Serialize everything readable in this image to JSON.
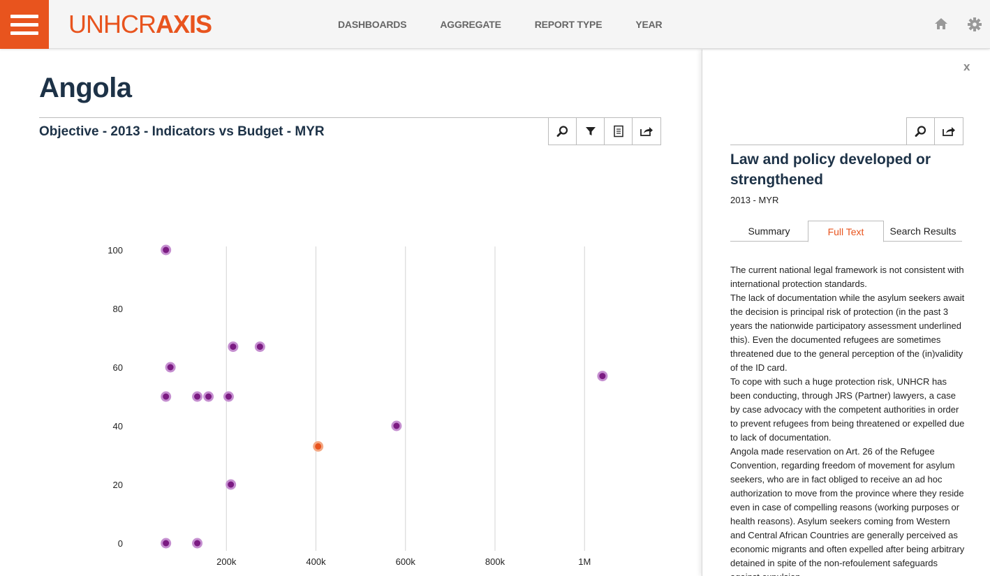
{
  "header": {
    "logo_thin": "UNHCR",
    "logo_bold": "AXIS",
    "nav": [
      "DASHBOARDS",
      "AGGREGATE",
      "REPORT TYPE",
      "YEAR"
    ],
    "icons": [
      "menu-icon",
      "home-icon",
      "gear-icon"
    ]
  },
  "main": {
    "page_title": "Angola",
    "panel_title": "Objective - 2013 - Indicators vs Budget - MYR",
    "toolbar_icons": [
      "search-icon",
      "filter-icon",
      "document-icon",
      "share-icon"
    ]
  },
  "chart_data": {
    "type": "scatter",
    "x_ticks": [
      {
        "value": 200000,
        "label": "200k"
      },
      {
        "value": 400000,
        "label": "400k"
      },
      {
        "value": 600000,
        "label": "600k"
      },
      {
        "value": 800000,
        "label": "800k"
      },
      {
        "value": 1000000,
        "label": "1M"
      }
    ],
    "y_ticks": [
      {
        "value": 100,
        "label": "100"
      },
      {
        "value": 80,
        "label": "80"
      },
      {
        "value": 60,
        "label": "60"
      },
      {
        "value": 40,
        "label": "40"
      },
      {
        "value": 20,
        "label": "20"
      },
      {
        "value": 0,
        "label": "0"
      }
    ],
    "grid": "vertical",
    "colors": {
      "point": "#7b1b82",
      "halo": "#c58fd0",
      "selected": "#e8541e",
      "selected_halo": "#f3a884"
    },
    "points": [
      {
        "x": 65000,
        "y": 100
      },
      {
        "x": 215000,
        "y": 67
      },
      {
        "x": 275000,
        "y": 67
      },
      {
        "x": 75000,
        "y": 60
      },
      {
        "x": 1040000,
        "y": 57
      },
      {
        "x": 65000,
        "y": 50
      },
      {
        "x": 135000,
        "y": 50
      },
      {
        "x": 160000,
        "y": 50
      },
      {
        "x": 205000,
        "y": 50
      },
      {
        "x": 580000,
        "y": 40
      },
      {
        "x": 405000,
        "y": 33,
        "selected": true
      },
      {
        "x": 210000,
        "y": 20
      },
      {
        "x": 65000,
        "y": 0
      },
      {
        "x": 135000,
        "y": 0
      }
    ]
  },
  "side": {
    "close_label": "x",
    "toolbar_icons": [
      "search-icon",
      "share-icon"
    ],
    "title": "Law and policy developed or strengthened",
    "subtitle": "2013 - MYR",
    "tabs": [
      "Summary",
      "Full Text",
      "Search Results"
    ],
    "active_tab": "Full Text",
    "full_text": [
      "The current national legal framework is not consistent with international protection standards.",
      "The lack of documentation while the asylum seekers await the decision is principal risk of protection (in the past 3 years the nationwide participatory assessment underlined this). Even the documented refugees are sometimes threatened due to the general perception of the (in)validity of the ID card.",
      "To cope with such a huge protection risk, UNHCR has been conducting, through JRS (Partner) lawyers, a case by case advocacy with the competent authorities in order to prevent refugees from being threatened or expelled due to lack of documentation.",
      "Angola made reservation on Art. 26 of the Refugee Convention, regarding freedom of movement for asylum seekers, who are in fact obliged to receive an ad hoc authorization to move from the province where they reside even in case of compelling reasons (working purposes or health reasons). Asylum seekers coming from Western and Central African Countries are generally perceived as economic migrants and often expelled after being arbitrary detained in spite of the non-refoulement safeguards against expulsion"
    ]
  }
}
